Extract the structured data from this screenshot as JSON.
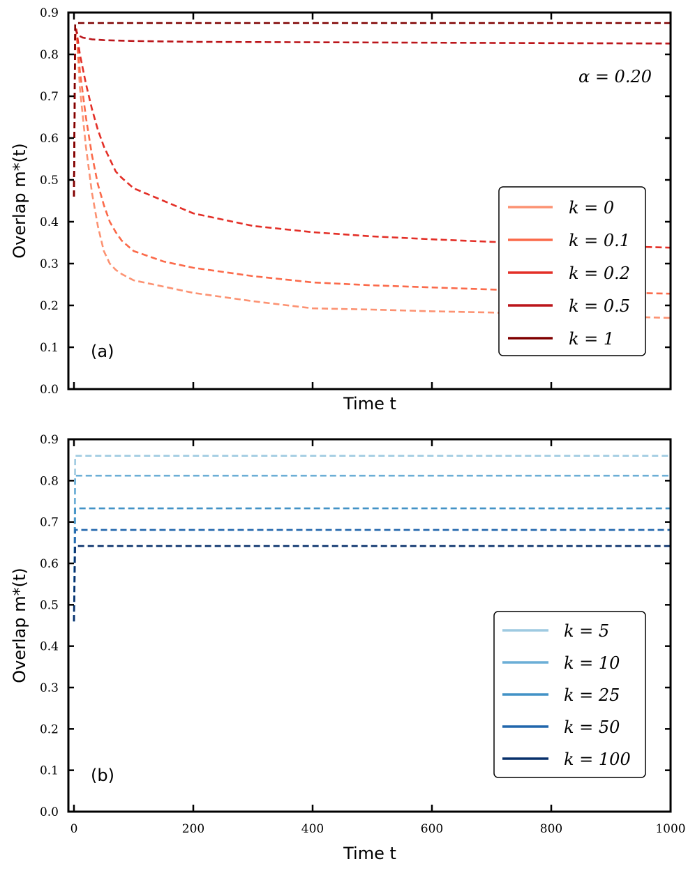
{
  "chart_data": [
    {
      "panel": "(a)",
      "type": "line",
      "ylabel": "Overlap m*(t)",
      "xlabel": "Time t",
      "xlim": [
        0,
        1000
      ],
      "ylim": [
        0.0,
        0.9
      ],
      "xticks": [
        0,
        200,
        400,
        600,
        800,
        1000
      ],
      "xtick_labels_visible": false,
      "yticks": [
        "0.0",
        "0.1",
        "0.2",
        "0.3",
        "0.4",
        "0.5",
        "0.6",
        "0.7",
        "0.8",
        "0.9"
      ],
      "annotation": "α = 0.20",
      "legend_position": "right",
      "series": [
        {
          "name": "k = 0",
          "color": "#fc9272",
          "x": [
            0,
            2,
            4,
            10,
            20,
            30,
            40,
            50,
            60,
            70,
            80,
            100,
            150,
            200,
            300,
            400,
            500,
            600,
            700,
            800,
            900,
            1000
          ],
          "values": [
            0.46,
            0.84,
            0.86,
            0.72,
            0.58,
            0.47,
            0.39,
            0.33,
            0.3,
            0.285,
            0.275,
            0.26,
            0.245,
            0.23,
            0.21,
            0.193,
            0.19,
            0.186,
            0.183,
            0.178,
            0.174,
            0.17
          ]
        },
        {
          "name": "k = 0.1",
          "color": "#fb6a4a",
          "x": [
            0,
            2,
            4,
            10,
            20,
            30,
            40,
            50,
            60,
            70,
            80,
            100,
            150,
            200,
            300,
            400,
            500,
            600,
            700,
            800,
            900,
            1000
          ],
          "values": [
            0.46,
            0.84,
            0.86,
            0.76,
            0.65,
            0.56,
            0.49,
            0.44,
            0.4,
            0.375,
            0.355,
            0.33,
            0.305,
            0.29,
            0.27,
            0.255,
            0.248,
            0.243,
            0.238,
            0.234,
            0.231,
            0.228
          ]
        },
        {
          "name": "k = 0.2",
          "color": "#e32f27",
          "x": [
            0,
            2,
            4,
            10,
            20,
            30,
            40,
            50,
            60,
            70,
            80,
            100,
            150,
            200,
            300,
            400,
            500,
            600,
            700,
            800,
            900,
            1000
          ],
          "values": [
            0.46,
            0.84,
            0.86,
            0.8,
            0.73,
            0.67,
            0.62,
            0.58,
            0.55,
            0.52,
            0.505,
            0.48,
            0.45,
            0.42,
            0.39,
            0.375,
            0.365,
            0.358,
            0.352,
            0.347,
            0.342,
            0.338
          ]
        },
        {
          "name": "k = 0.5",
          "color": "#bb151a",
          "x": [
            0,
            2,
            4,
            8,
            15,
            30,
            50,
            100,
            200,
            400,
            600,
            800,
            1000
          ],
          "values": [
            0.46,
            0.86,
            0.855,
            0.845,
            0.84,
            0.836,
            0.834,
            0.832,
            0.83,
            0.829,
            0.828,
            0.827,
            0.826
          ]
        },
        {
          "name": "k = 1",
          "color": "#7f0000",
          "x": [
            0,
            2,
            4,
            10,
            100,
            500,
            1000
          ],
          "values": [
            0.46,
            0.87,
            0.875,
            0.875,
            0.875,
            0.875,
            0.875
          ]
        }
      ]
    },
    {
      "panel": "(b)",
      "type": "line",
      "ylabel": "Overlap m*(t)",
      "xlabel": "Time t",
      "xlim": [
        0,
        1000
      ],
      "ylim": [
        0.0,
        0.9
      ],
      "xticks": [
        0,
        200,
        400,
        600,
        800,
        1000
      ],
      "xtick_labels": [
        "0",
        "200",
        "400",
        "600",
        "800",
        "1000"
      ],
      "yticks": [
        "0.0",
        "0.1",
        "0.2",
        "0.3",
        "0.4",
        "0.5",
        "0.6",
        "0.7",
        "0.8",
        "0.9"
      ],
      "legend_position": "lower-right",
      "series": [
        {
          "name": "k = 5",
          "color": "#9ecae1",
          "x": [
            0,
            2,
            4,
            1000
          ],
          "values": [
            0.46,
            0.86,
            0.86,
            0.86
          ]
        },
        {
          "name": "k = 10",
          "color": "#6baed6",
          "x": [
            0,
            2,
            4,
            1000
          ],
          "values": [
            0.46,
            0.812,
            0.812,
            0.812
          ]
        },
        {
          "name": "k = 25",
          "color": "#4292c6",
          "x": [
            0,
            2,
            4,
            1000
          ],
          "values": [
            0.46,
            0.733,
            0.733,
            0.733
          ]
        },
        {
          "name": "k = 50",
          "color": "#2166ac",
          "x": [
            0,
            2,
            4,
            1000
          ],
          "values": [
            0.46,
            0.681,
            0.681,
            0.681
          ]
        },
        {
          "name": "k = 100",
          "color": "#08306b",
          "x": [
            0,
            2,
            4,
            1000
          ],
          "values": [
            0.46,
            0.642,
            0.642,
            0.642
          ]
        }
      ]
    }
  ]
}
